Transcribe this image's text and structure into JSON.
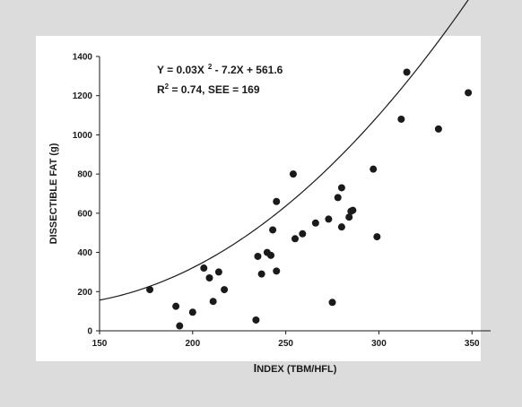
{
  "chart_data": {
    "type": "scatter",
    "xlabel_initial": "I",
    "xlabel_rest": "NDEX (TBM/HFL)",
    "ylabel": "DISSECTIBLE FAT (g)",
    "xlim": [
      150,
      360
    ],
    "ylim": [
      0,
      1400
    ],
    "xticks": [
      150,
      200,
      250,
      300,
      350
    ],
    "yticks": [
      0,
      200,
      400,
      600,
      800,
      1000,
      1200,
      1400
    ],
    "grid": false,
    "annotation_line1_a": "Y = 0.03X",
    "annotation_line1_sup": "2",
    "annotation_line1_b": " - 7.2X + 561.6",
    "annotation_line2_a": "R",
    "annotation_line2_sup": "2",
    "annotation_line2_b": " = 0.74,  SEE = 169",
    "fit": {
      "a": 0.03,
      "b": -7.2,
      "c": 561.6
    },
    "points": [
      [
        177,
        210
      ],
      [
        191,
        125
      ],
      [
        193,
        25
      ],
      [
        200,
        95
      ],
      [
        206,
        320
      ],
      [
        209,
        270
      ],
      [
        211,
        150
      ],
      [
        214,
        300
      ],
      [
        217,
        210
      ],
      [
        234,
        55
      ],
      [
        235,
        380
      ],
      [
        237,
        290
      ],
      [
        240,
        400
      ],
      [
        242,
        385
      ],
      [
        243,
        515
      ],
      [
        245,
        305
      ],
      [
        245,
        660
      ],
      [
        254,
        800
      ],
      [
        255,
        470
      ],
      [
        259,
        495
      ],
      [
        266,
        550
      ],
      [
        273,
        570
      ],
      [
        275,
        145
      ],
      [
        278,
        680
      ],
      [
        280,
        730
      ],
      [
        280,
        530
      ],
      [
        284,
        580
      ],
      [
        285,
        610
      ],
      [
        286,
        615
      ],
      [
        297,
        825
      ],
      [
        299,
        480
      ],
      [
        312,
        1080
      ],
      [
        315,
        1320
      ],
      [
        332,
        1030
      ],
      [
        348,
        1215
      ]
    ]
  }
}
